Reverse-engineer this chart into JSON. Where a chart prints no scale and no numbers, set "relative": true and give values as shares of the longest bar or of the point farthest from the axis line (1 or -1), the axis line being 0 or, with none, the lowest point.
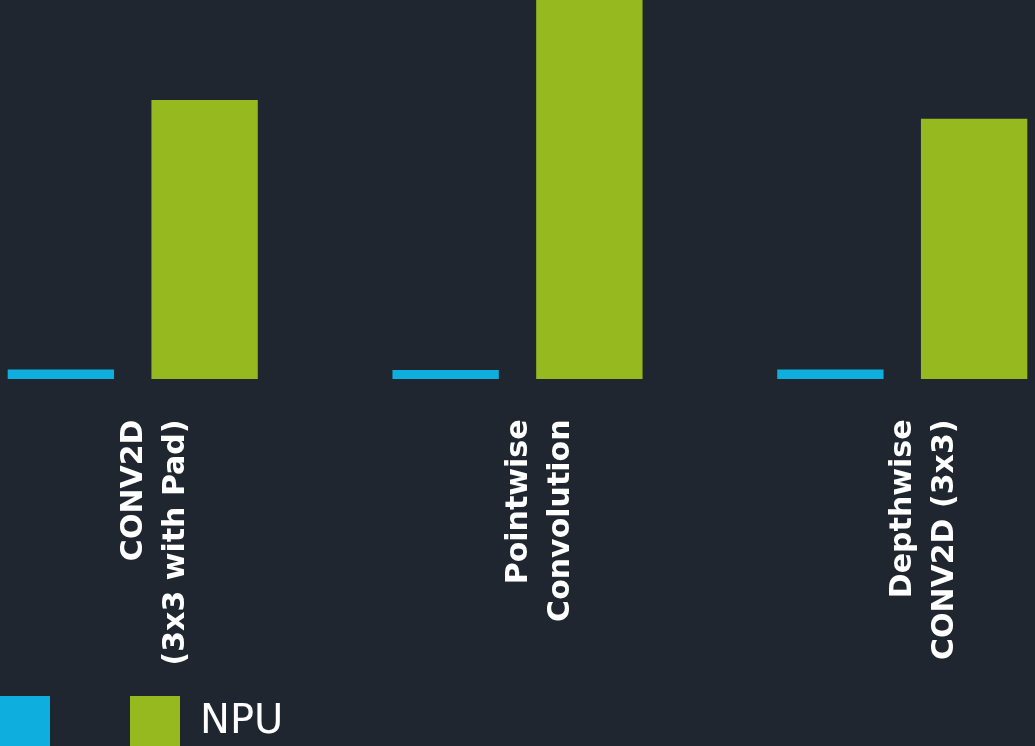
{
  "chart_data": {
    "type": "bar",
    "relative": true,
    "categories": [
      "CONV2D\n(3x3 with Pad)",
      "Pointwise\nConvolution",
      "Depthwise\nCONV2D (3x3)"
    ],
    "series": [
      {
        "color": "#0eaedf",
        "values": [
          0.025,
          0.024,
          0.025
        ]
      },
      {
        "name": "NPU",
        "color": "#97b920",
        "values": [
          0.736,
          1,
          0.687
        ]
      }
    ],
    "legend": "bottom"
  }
}
